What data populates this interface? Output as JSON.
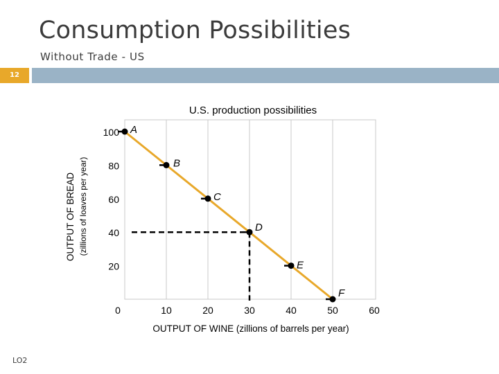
{
  "slide": {
    "title": "Consumption Possibilities",
    "subtitle": "Without Trade - US",
    "slide_number": "12",
    "footer_label": "LO2",
    "accent_color": "#e8a82a",
    "band_color": "#9ab3c6"
  },
  "chart_data": {
    "type": "line",
    "title": "U.S. production possibilities",
    "xlabel": "OUTPUT OF WINE (zillions of barrels per year)",
    "ylabel_line1": "OUTPUT OF BREAD",
    "ylabel_line2": "(zillions of loaves per year)",
    "xlim": [
      0,
      60
    ],
    "ylim": [
      0,
      100
    ],
    "x_ticks": [
      "0",
      "10",
      "20",
      "30",
      "40",
      "50",
      "60"
    ],
    "y_ticks": [
      "20",
      "40",
      "60",
      "80",
      "100"
    ],
    "grid": true,
    "line_color": "#e8a82a",
    "points": [
      {
        "label": "A",
        "x": 0,
        "y": 100
      },
      {
        "label": "B",
        "x": 10,
        "y": 80
      },
      {
        "label": "C",
        "x": 20,
        "y": 60
      },
      {
        "label": "D",
        "x": 30,
        "y": 40
      },
      {
        "label": "E",
        "x": 40,
        "y": 20
      },
      {
        "label": "F",
        "x": 50,
        "y": 0
      }
    ],
    "dashed_guides": {
      "x": 30,
      "y": 40
    }
  }
}
